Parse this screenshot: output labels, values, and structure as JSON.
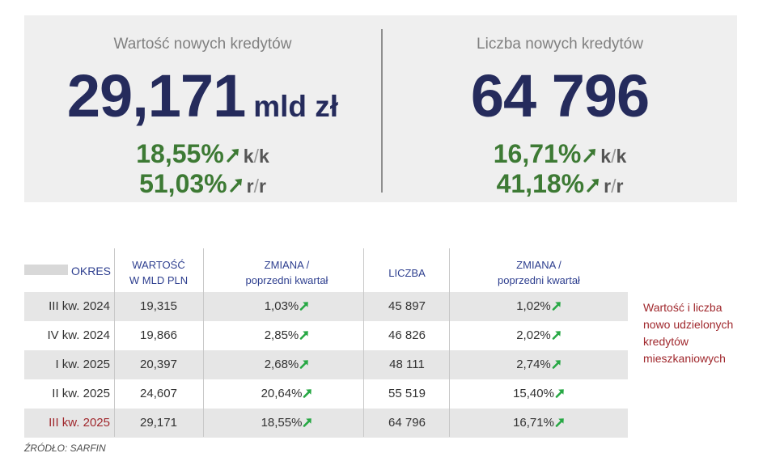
{
  "summary": {
    "left": {
      "title": "Wartość nowych kredytów",
      "value": "29,171",
      "unit": "mld zł",
      "changes": [
        {
          "pct": "18,55%",
          "per_a": "k",
          "per_b": "k"
        },
        {
          "pct": "51,03%",
          "per_a": "r",
          "per_b": "r"
        }
      ]
    },
    "right": {
      "title": "Liczba nowych kredytów",
      "value": "64 796",
      "changes": [
        {
          "pct": "16,71%",
          "per_a": "k",
          "per_b": "k"
        },
        {
          "pct": "41,18%",
          "per_a": "r",
          "per_b": "r"
        }
      ]
    }
  },
  "table": {
    "headers": {
      "okres": "OKRES",
      "wartosc_l1": "WARTOŚĆ",
      "wartosc_l2": "W MLD PLN",
      "zmiana1_l1": "ZMIANA /",
      "zmiana1_l2": "poprzedni kwartał",
      "liczba": "LICZBA",
      "zmiana2_l1": "ZMIANA /",
      "zmiana2_l2": "poprzedni kwartał"
    },
    "rows": [
      {
        "okres": "III kw. 2024",
        "wartosc": "19,315",
        "zmiana_wartosc": "1,03%",
        "liczba": "45 897",
        "zmiana_liczba": "1,02%"
      },
      {
        "okres": "IV kw. 2024",
        "wartosc": "19,866",
        "zmiana_wartosc": "2,85%",
        "liczba": "46 826",
        "zmiana_liczba": "2,02%"
      },
      {
        "okres": "I kw. 2025",
        "wartosc": "20,397",
        "zmiana_wartosc": "2,68%",
        "liczba": "48 111",
        "zmiana_liczba": "2,74%"
      },
      {
        "okres": "II kw. 2025",
        "wartosc": "24,607",
        "zmiana_wartosc": "20,64%",
        "liczba": "55 519",
        "zmiana_liczba": "15,40%"
      },
      {
        "okres": "III kw. 2025",
        "wartosc": "29,171",
        "zmiana_wartosc": "18,55%",
        "liczba": "64 796",
        "zmiana_liczba": "16,71%"
      }
    ]
  },
  "side_note": "Wartość i liczba nowo udzielonych kredytów mieszkaniowych",
  "source": "ŹRÓDŁO: SARFIN",
  "colors": {
    "navy": "#252b5c",
    "header_blue": "#2e3f8f",
    "green": "#3d7a34",
    "arrow_green": "#27a844",
    "highlight_red": "#a0282d",
    "panel_bg": "#efefef",
    "row_shade": "#e6e6e6"
  },
  "icons": {
    "trend": "arrow-up-right-icon"
  }
}
